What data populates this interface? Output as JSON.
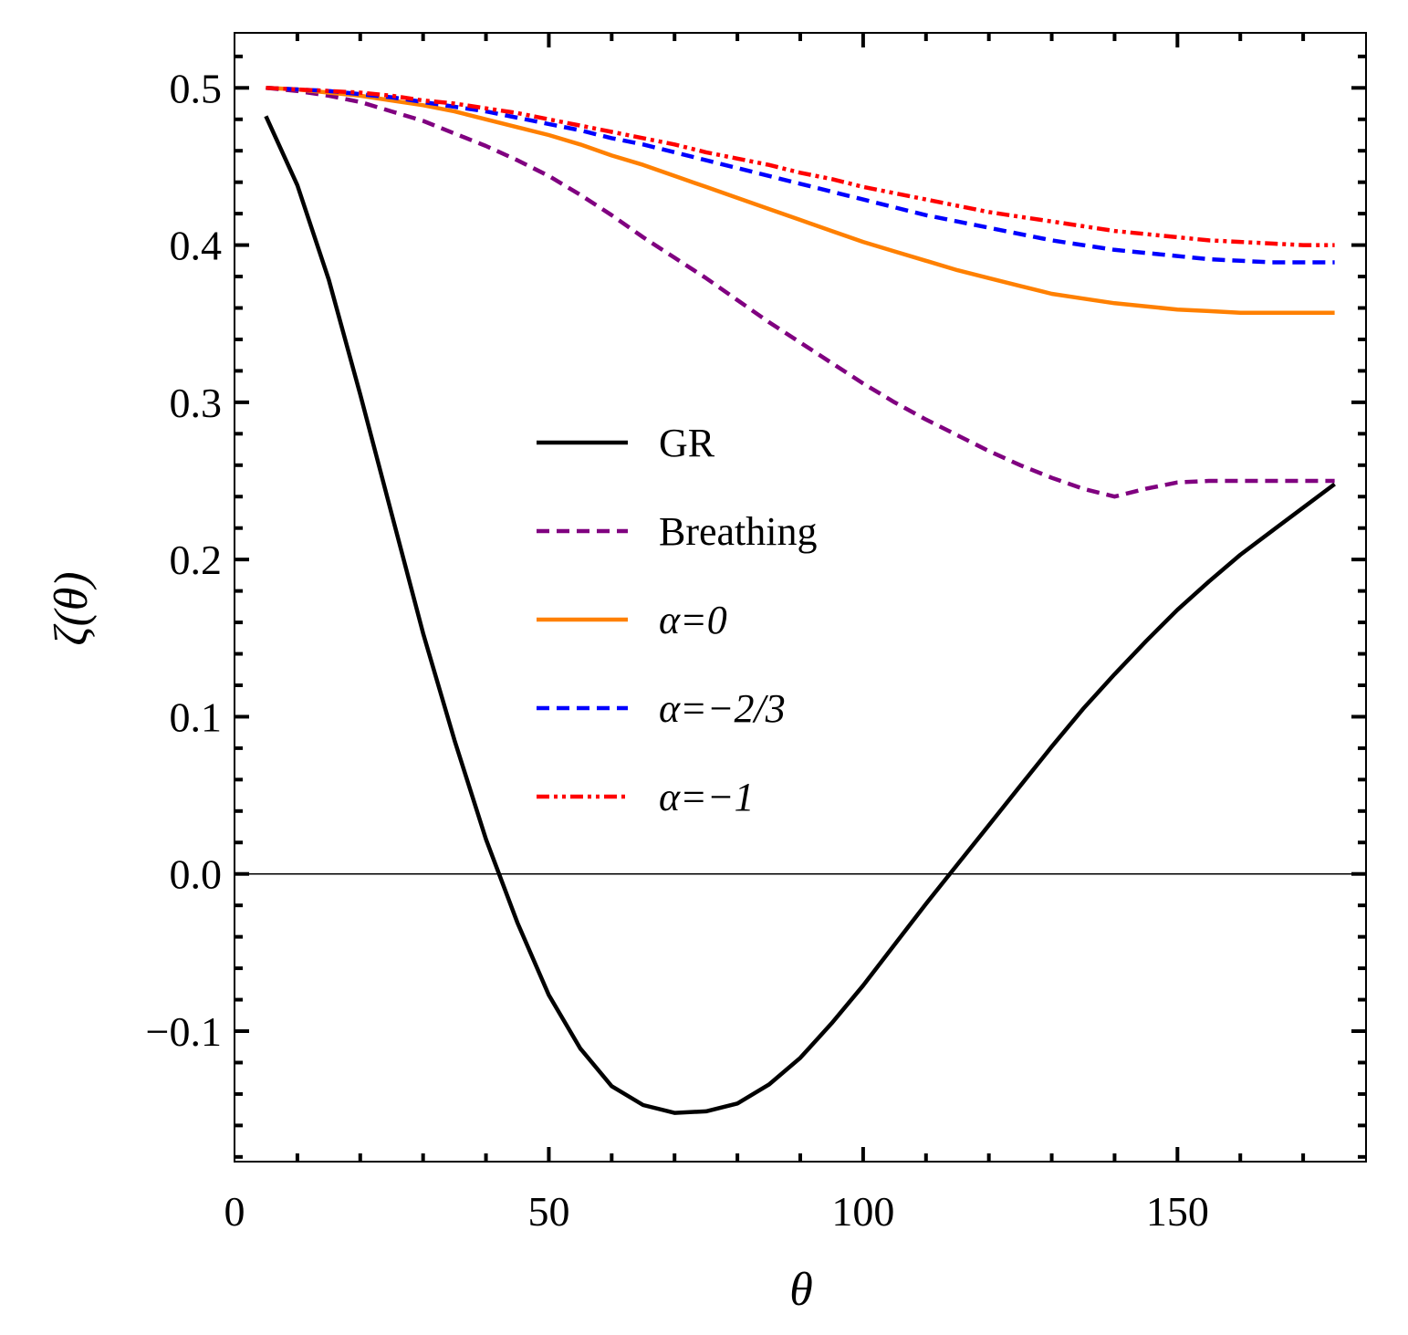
{
  "chart_data": {
    "type": "line",
    "title": "",
    "xlabel": "θ",
    "ylabel": "ζ(θ)",
    "xlim": [
      0,
      180
    ],
    "ylim": [
      -0.183,
      0.535
    ],
    "x_ticks": [
      0,
      50,
      100,
      150
    ],
    "x_tick_labels": [
      "0",
      "50",
      "100",
      "150"
    ],
    "y_ticks": [
      -0.1,
      0.0,
      0.1,
      0.2,
      0.3,
      0.4,
      0.5
    ],
    "y_tick_labels": [
      "−0.1",
      "0.0",
      "0.1",
      "0.2",
      "0.3",
      "0.4",
      "0.5"
    ],
    "grid": false,
    "reference_line_y": 0,
    "legend_position": "center",
    "x": [
      5,
      10,
      15,
      20,
      25,
      30,
      35,
      40,
      45,
      50,
      55,
      60,
      65,
      70,
      75,
      80,
      85,
      90,
      95,
      100,
      105,
      110,
      115,
      120,
      125,
      130,
      135,
      140,
      145,
      150,
      155,
      160,
      165,
      170,
      175
    ],
    "series": [
      {
        "name": "GR",
        "color": "#000000",
        "dash": "solid",
        "values": [
          0.482,
          0.438,
          0.378,
          0.305,
          0.229,
          0.153,
          0.085,
          0.022,
          -0.031,
          -0.077,
          -0.111,
          -0.135,
          -0.147,
          -0.152,
          -0.151,
          -0.146,
          -0.134,
          -0.117,
          -0.095,
          -0.071,
          -0.045,
          -0.019,
          0.006,
          0.031,
          0.056,
          0.081,
          0.105,
          0.127,
          0.148,
          0.168,
          0.186,
          0.203,
          0.218,
          0.233,
          0.248
        ]
      },
      {
        "name": "Breathing",
        "color": "#800080",
        "dash": "dashed",
        "values": [
          0.5,
          0.498,
          0.495,
          0.491,
          0.485,
          0.479,
          0.471,
          0.463,
          0.454,
          0.444,
          0.432,
          0.419,
          0.405,
          0.392,
          0.379,
          0.365,
          0.351,
          0.338,
          0.325,
          0.312,
          0.3,
          0.289,
          0.279,
          0.269,
          0.26,
          0.252,
          0.245,
          0.24,
          0.245,
          0.249,
          0.25,
          0.25,
          0.25,
          0.25,
          0.25
        ]
      },
      {
        "name": "α=0",
        "color": "#ff8000",
        "dash": "solid",
        "values": [
          0.5,
          0.499,
          0.497,
          0.495,
          0.492,
          0.489,
          0.485,
          0.48,
          0.475,
          0.47,
          0.464,
          0.457,
          0.451,
          0.444,
          0.437,
          0.43,
          0.423,
          0.416,
          0.409,
          0.402,
          0.396,
          0.39,
          0.384,
          0.379,
          0.374,
          0.369,
          0.366,
          0.363,
          0.361,
          0.359,
          0.358,
          0.357,
          0.357,
          0.357,
          0.357
        ]
      },
      {
        "name": "α=−2/3",
        "color": "#0000ff",
        "dash": "dashed",
        "values": [
          0.5,
          0.499,
          0.498,
          0.496,
          0.494,
          0.491,
          0.488,
          0.485,
          0.481,
          0.477,
          0.473,
          0.468,
          0.464,
          0.459,
          0.454,
          0.449,
          0.444,
          0.439,
          0.434,
          0.429,
          0.424,
          0.419,
          0.415,
          0.411,
          0.407,
          0.403,
          0.4,
          0.397,
          0.395,
          0.393,
          0.391,
          0.39,
          0.389,
          0.389,
          0.389
        ]
      },
      {
        "name": "α=−1",
        "color": "#ff0000",
        "dash": "dashdot",
        "values": [
          0.5,
          0.499,
          0.498,
          0.497,
          0.495,
          0.492,
          0.49,
          0.487,
          0.484,
          0.48,
          0.476,
          0.472,
          0.468,
          0.464,
          0.459,
          0.455,
          0.451,
          0.446,
          0.442,
          0.437,
          0.433,
          0.429,
          0.425,
          0.421,
          0.418,
          0.415,
          0.412,
          0.409,
          0.407,
          0.405,
          0.403,
          0.402,
          0.401,
          0.4,
          0.4
        ]
      }
    ]
  }
}
